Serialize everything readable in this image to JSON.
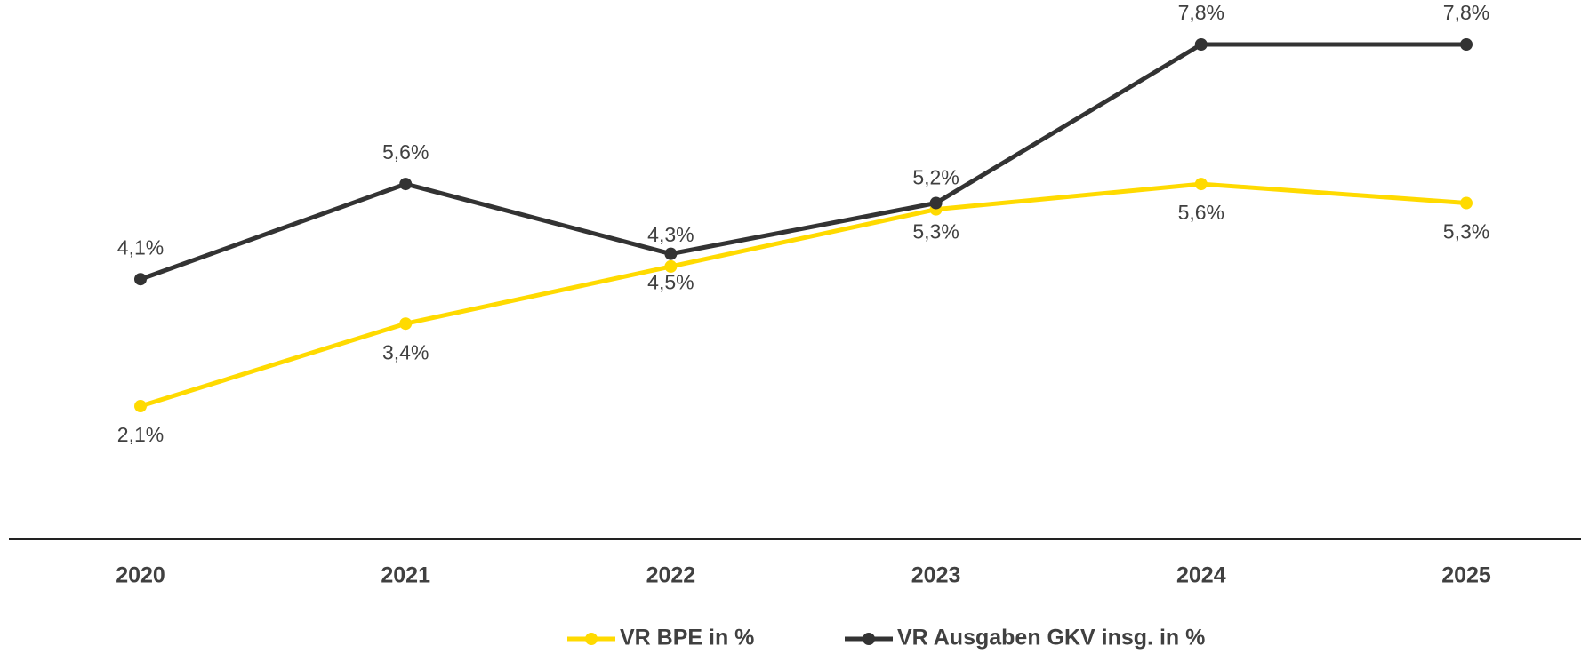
{
  "chart_data": {
    "type": "line",
    "categories": [
      "2020",
      "2021",
      "2022",
      "2023",
      "2024",
      "2025"
    ],
    "series": [
      {
        "name": "VR BPE in %",
        "color": "#FFDA00",
        "values": [
          2.1,
          3.4,
          4.3,
          5.2,
          5.6,
          5.3
        ],
        "value_labels": [
          "2,1%",
          "3,4%",
          "4,3%",
          "5,2%",
          "5,6%",
          "5,3%"
        ]
      },
      {
        "name": "VR Ausgaben GKV insg. in %",
        "color": "#333333",
        "values": [
          4.1,
          5.6,
          4.5,
          5.3,
          7.8,
          7.8
        ],
        "value_labels": [
          "4,1%",
          "5,6%",
          "4,5%",
          "5,3%",
          "7,8%",
          "7,8%"
        ]
      }
    ],
    "ylim": [
      0,
      8.5
    ],
    "legend": "bottom"
  }
}
